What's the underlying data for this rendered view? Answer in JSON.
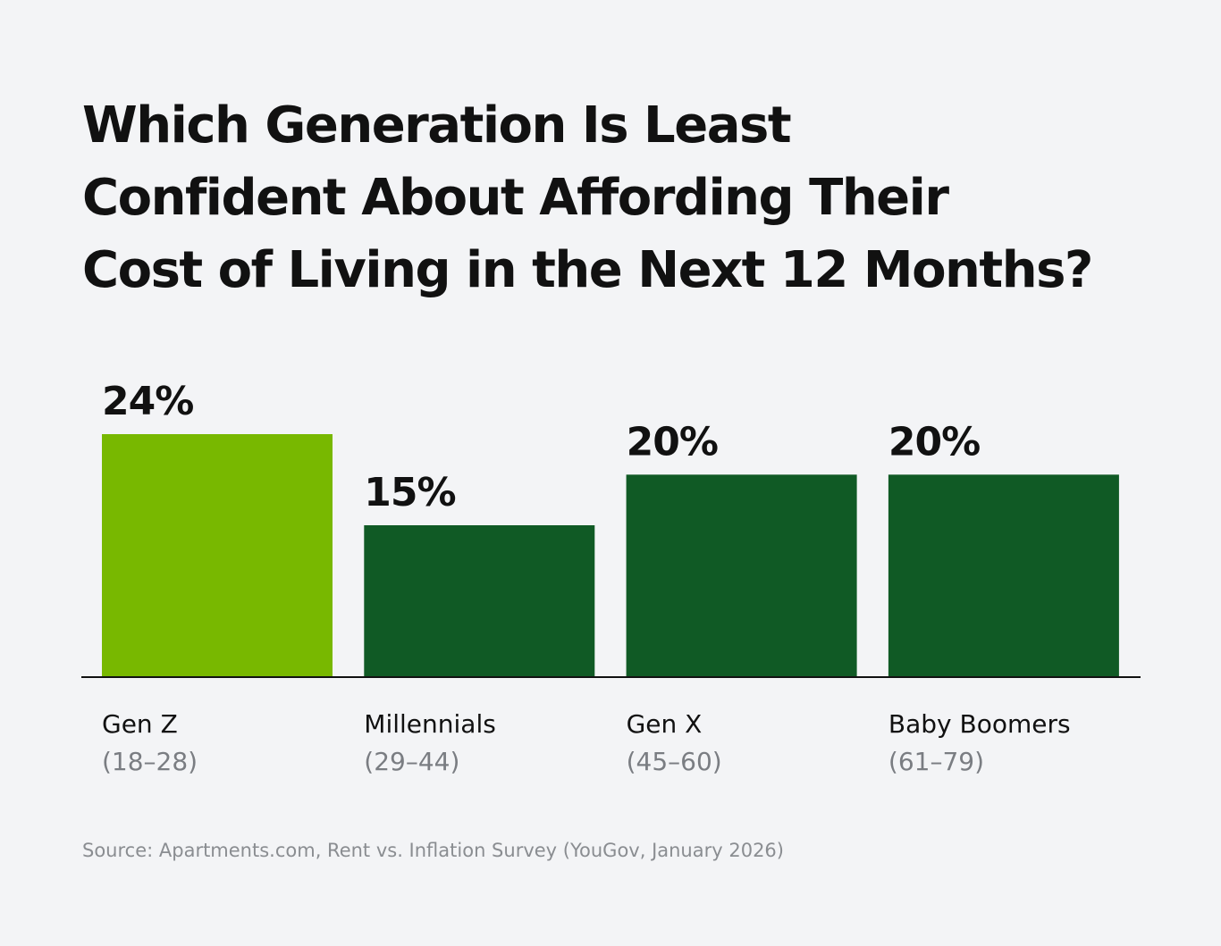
{
  "title_lines": [
    "Which Generation Is Least",
    "Confident About Affording Their",
    "Cost of Living in the Next 12 Months?"
  ],
  "source": "Source: Apartments.com, Rent vs. Inflation Survey (YouGov, January 2026)",
  "colors": {
    "background": "#f3f4f6",
    "highlight_bar": "#78b800",
    "bar": "#105a25",
    "axis": "#111111",
    "text": "#111111",
    "subtext": "#7a7d82",
    "source_text": "#8a8d91"
  },
  "chart_data": {
    "type": "bar",
    "title": "Which Generation Is Least Confident About Affording Their Cost of Living in the Next 12 Months?",
    "categories": [
      "Gen Z",
      "Millennials",
      "Gen X",
      "Baby Boomers"
    ],
    "category_sublabels": [
      "(18–28)",
      "(29–44)",
      "(45–60)",
      "(61–79)"
    ],
    "values": [
      24,
      15,
      20,
      20
    ],
    "value_labels": [
      "24%",
      "15%",
      "20%",
      "20%"
    ],
    "highlighted": [
      true,
      false,
      false,
      false
    ],
    "unit": "%",
    "xlabel": "",
    "ylabel": "",
    "ylim": [
      0,
      24
    ],
    "grid": false,
    "legend": "none"
  }
}
